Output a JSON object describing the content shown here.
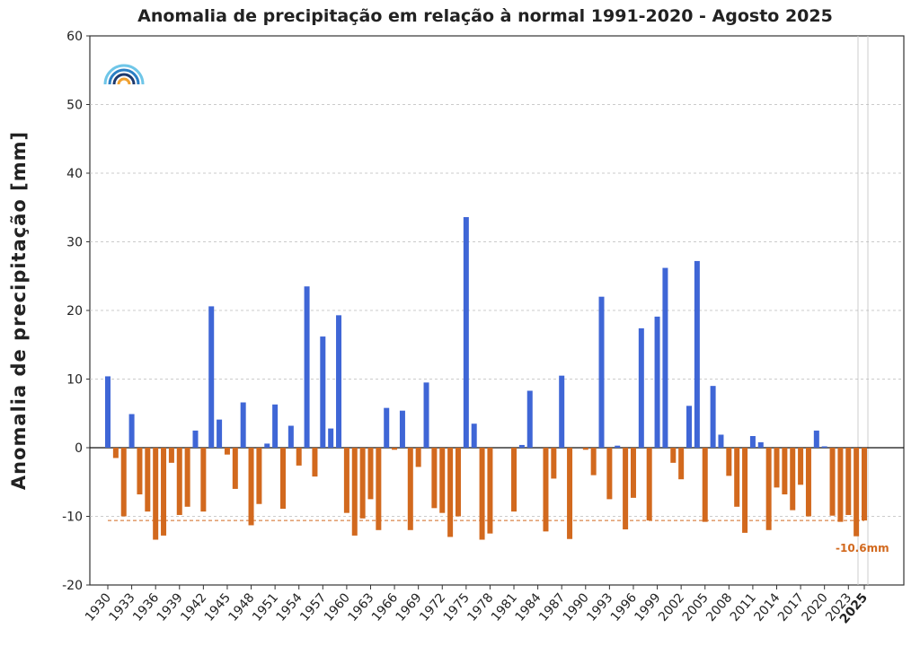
{
  "chart_data": {
    "type": "bar",
    "title": "Anomalia de precipitação em relação à normal 1991-2020 - Agosto 2025",
    "y_label": "Anomalia de precipitação [mm]",
    "categories": [
      "1930",
      null,
      null,
      "1933",
      null,
      null,
      "1936",
      null,
      null,
      "1939",
      null,
      null,
      "1942",
      null,
      null,
      "1945",
      null,
      null,
      "1948",
      null,
      null,
      "1951",
      null,
      null,
      "1954",
      null,
      null,
      "1957",
      null,
      null,
      "1960",
      null,
      null,
      "1963",
      null,
      null,
      "1966",
      null,
      null,
      "1969",
      null,
      null,
      "1972",
      null,
      null,
      "1975",
      null,
      null,
      "1978",
      null,
      null,
      "1981",
      null,
      null,
      "1984",
      null,
      null,
      "1987",
      null,
      null,
      "1990",
      null,
      null,
      "1993",
      null,
      null,
      "1996",
      null,
      null,
      "1999",
      null,
      null,
      "2002",
      null,
      null,
      "2005",
      null,
      null,
      "2008",
      null,
      null,
      "2011",
      null,
      null,
      "2014",
      null,
      null,
      "2017",
      null,
      null,
      "2020",
      null,
      null,
      "2023",
      null,
      "2025"
    ],
    "values": [
      10.4,
      -1.5,
      -10,
      4.9,
      -6.8,
      -9.3,
      -13.4,
      -12.8,
      -2.2,
      -9.8,
      -8.6,
      2.5,
      -9.3,
      20.6,
      4.1,
      -1,
      -6,
      6.6,
      -11.3,
      -8.2,
      0.6,
      6.3,
      -8.9,
      3.2,
      -2.6,
      23.5,
      -4.2,
      16.2,
      2.8,
      19.3,
      -9.5,
      -12.8,
      -10.3,
      -7.5,
      -12,
      5.8,
      -0.3,
      5.4,
      -12,
      -2.8,
      9.5,
      -8.8,
      -9.5,
      -13,
      -10,
      33.6,
      3.5,
      -13.4,
      -12.5,
      0,
      0,
      -9.3,
      0.4,
      8.3,
      0,
      -12.2,
      -4.5,
      10.5,
      -13.3,
      0,
      -0.3,
      -4,
      22,
      -7.5,
      0.3,
      -11.9,
      -7.3,
      17.4,
      -10.6,
      19.1,
      26.2,
      -2.2,
      -4.6,
      6.1,
      27.2,
      -10.8,
      9,
      1.9,
      -4.1,
      -8.6,
      -12.4,
      1.7,
      0.8,
      -12,
      -5.8,
      -6.8,
      -9.1,
      -5.4,
      -10,
      2.5,
      0.2,
      -9.9,
      -10.8,
      -9.8,
      -12.9,
      -10.6
    ],
    "positive_color": "#3f66d6",
    "negative_color": "#d2691e",
    "mean_line": {
      "value": -10.6,
      "label": "-10.6mm"
    },
    "ylim": [
      -20,
      60
    ],
    "yticks": [
      -20,
      -10,
      0,
      10,
      20,
      30,
      40,
      50,
      60
    ],
    "grid": true
  }
}
